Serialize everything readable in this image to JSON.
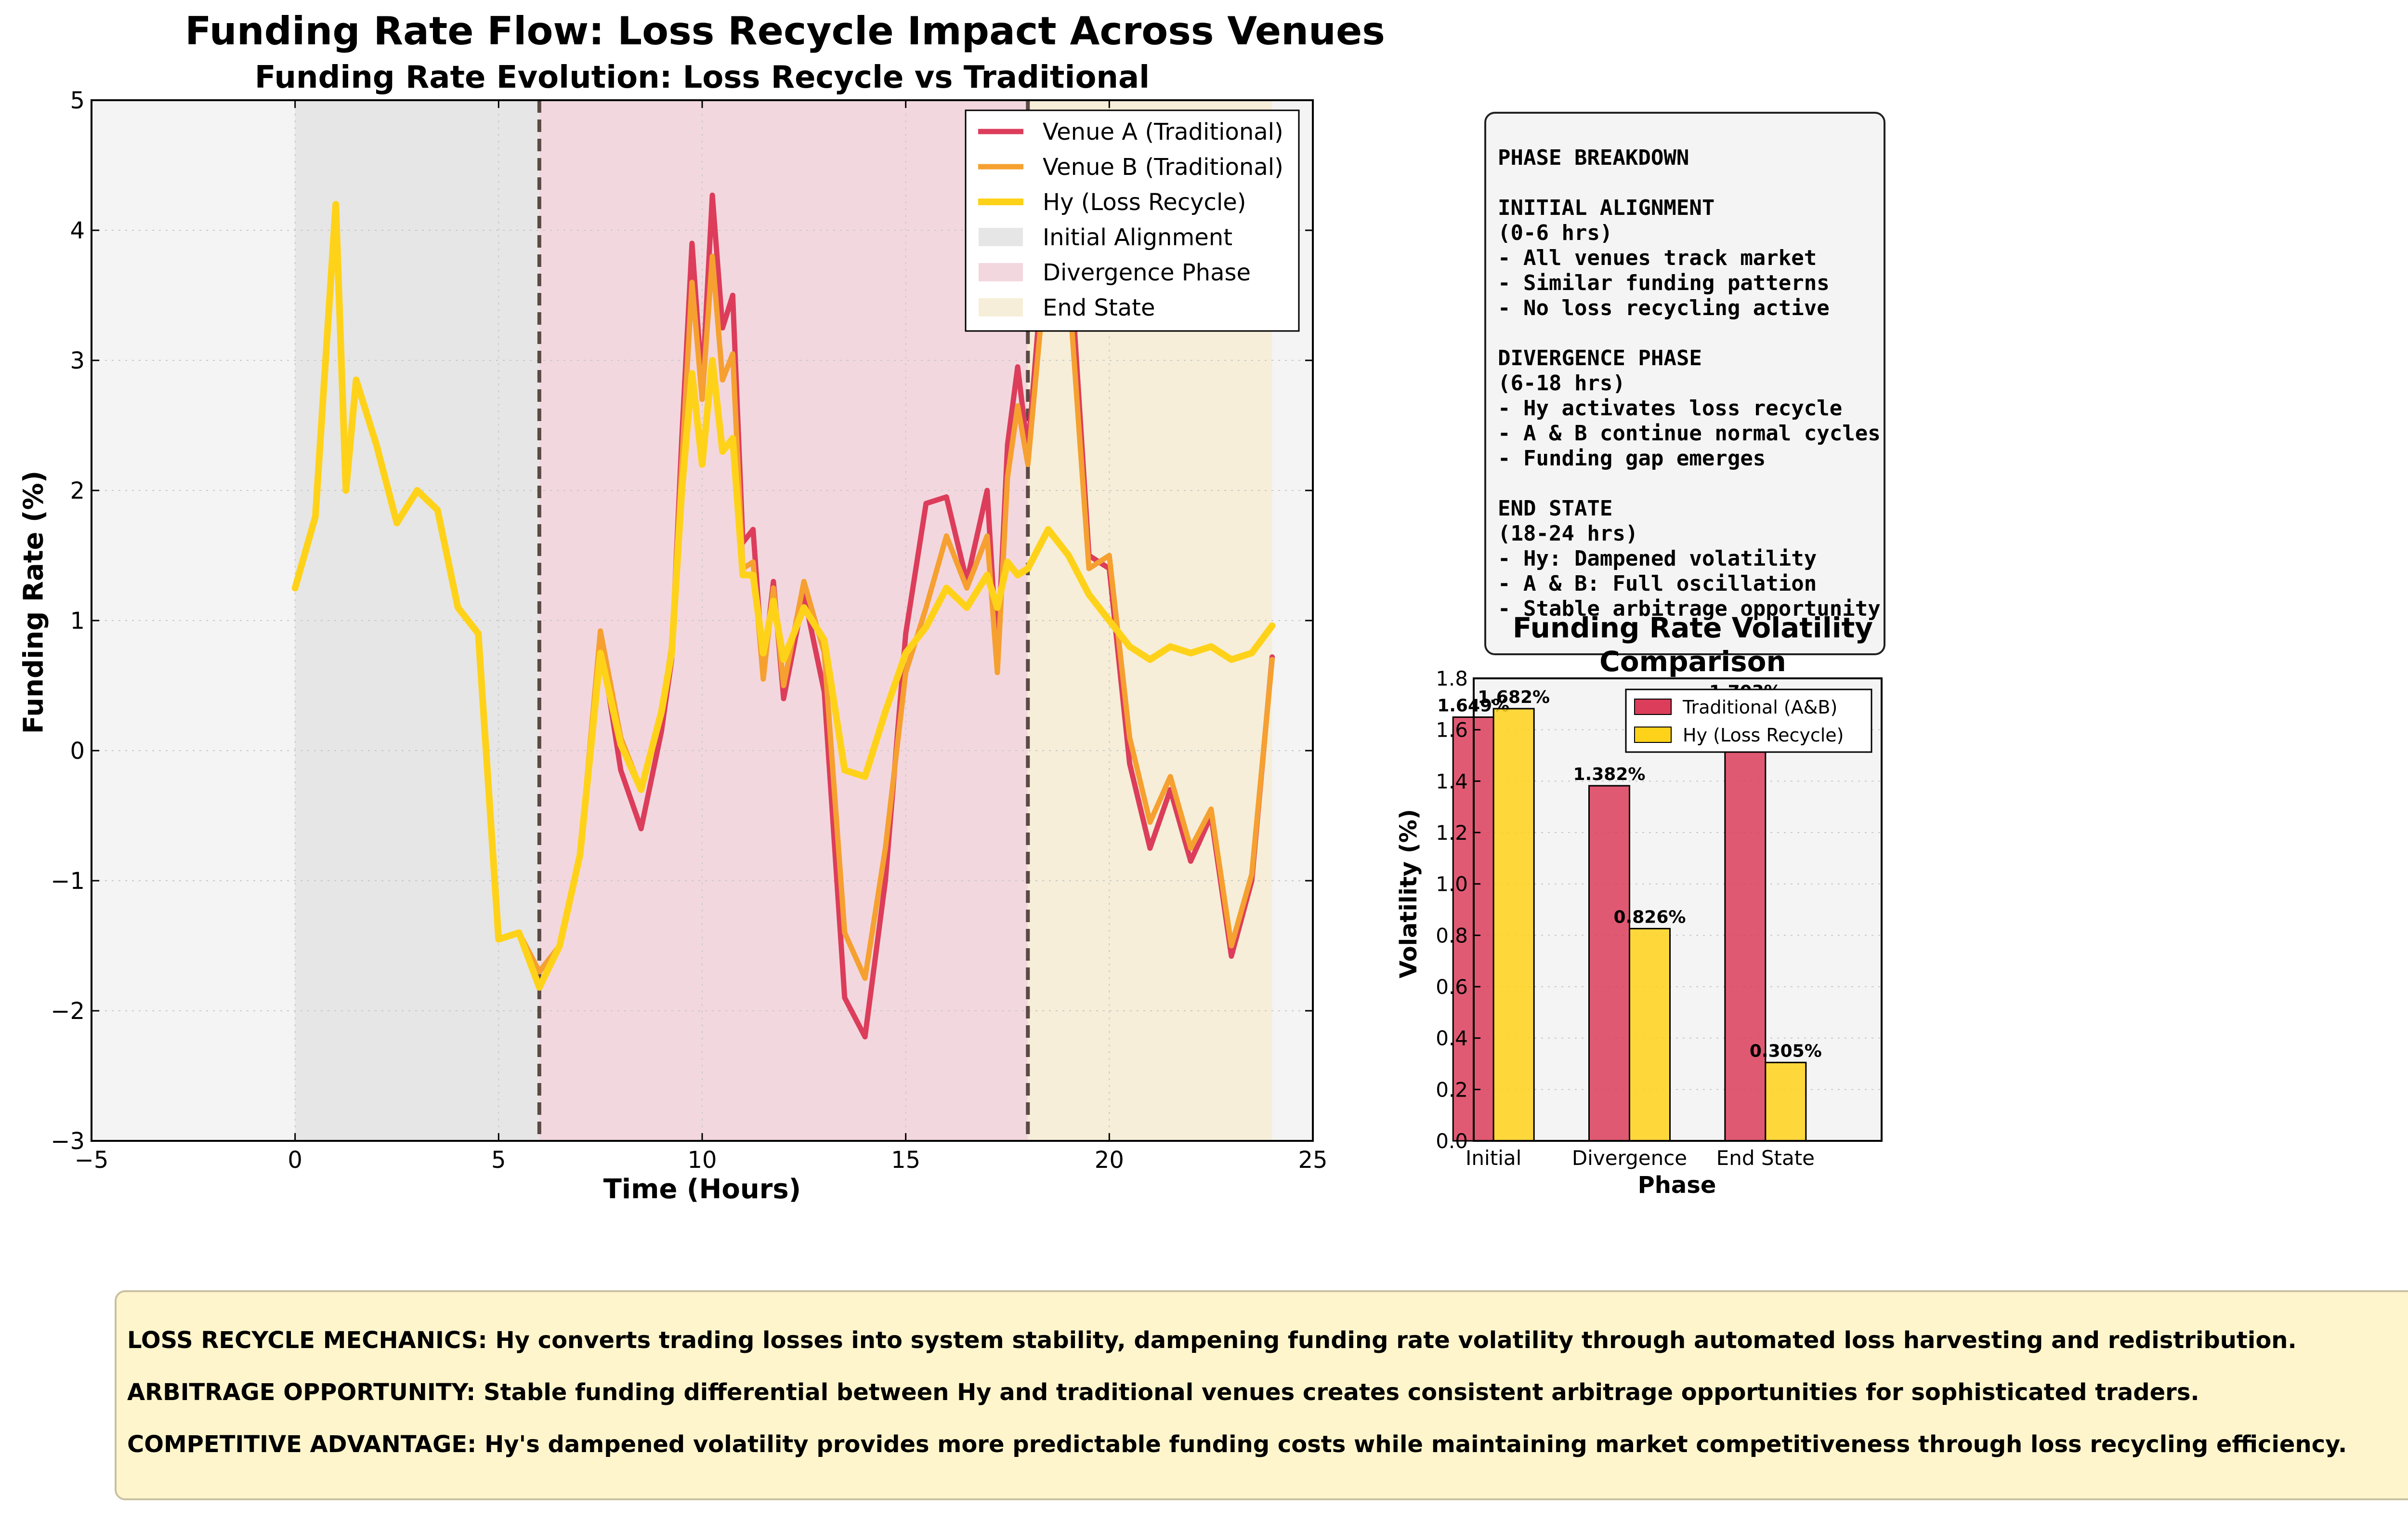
{
  "suptitle": "Funding Rate Flow: Loss Recycle Impact Across Venues",
  "colors": {
    "venue_a": "#dc3d5a",
    "venue_b": "#f5a030",
    "hy": "#ffd21a",
    "initial_shade": "#e6e6e6",
    "divergence_shade": "#f3d7de",
    "end_shade": "#f6eed8",
    "axes_bg": "#f4f4f4",
    "boundary": "#5a4a44"
  },
  "chart_data": [
    {
      "type": "line",
      "title": "Funding Rate Evolution: Loss Recycle vs Traditional",
      "xlabel": "Time (Hours)",
      "ylabel": "Funding Rate (%)",
      "xlim": [
        -5,
        25
      ],
      "ylim": [
        -3,
        5
      ],
      "xticks": [
        -5,
        0,
        5,
        10,
        15,
        20,
        25
      ],
      "xtick_labels": [
        "−5",
        "0",
        "5",
        "10",
        "15",
        "20",
        "25"
      ],
      "yticks": [
        -3,
        -2,
        -1,
        0,
        1,
        2,
        3,
        4,
        5
      ],
      "ytick_labels": [
        "−3",
        "−2",
        "−1",
        "0",
        "1",
        "2",
        "3",
        "4",
        "5"
      ],
      "grid": true,
      "legend_position": "top-right",
      "phases": [
        {
          "name": "Initial Alignment",
          "start": 0,
          "end": 6
        },
        {
          "name": "Divergence Phase",
          "start": 6,
          "end": 18
        },
        {
          "name": "End State",
          "start": 18,
          "end": 24
        }
      ],
      "boundaries": [
        6,
        18
      ],
      "series": [
        {
          "name": "Venue A (Traditional)",
          "x": [
            0,
            0.5,
            1,
            1.25,
            1.5,
            2,
            2.5,
            3,
            3.5,
            4,
            4.5,
            5,
            5.5,
            6,
            6.5,
            7,
            7.5,
            8,
            8.5,
            9,
            9.25,
            9.5,
            9.75,
            10,
            10.25,
            10.5,
            10.75,
            11,
            11.25,
            11.5,
            11.75,
            12,
            12.5,
            13,
            13.5,
            14,
            14.5,
            15,
            15.5,
            16,
            16.5,
            17,
            17.25,
            17.5,
            17.75,
            18,
            18.5,
            19,
            19.5,
            20,
            20.5,
            21,
            21.5,
            22,
            22.5,
            23,
            23.5,
            24
          ],
          "values": [
            1.25,
            1.8,
            4.2,
            2.0,
            2.85,
            2.35,
            1.75,
            2.0,
            1.85,
            1.1,
            0.9,
            -1.45,
            -1.4,
            -1.7,
            -1.5,
            -0.8,
            0.85,
            -0.15,
            -0.6,
            0.15,
            0.7,
            2.4,
            3.9,
            2.8,
            4.27,
            3.25,
            3.5,
            1.6,
            1.7,
            0.6,
            1.3,
            0.4,
            1.2,
            0.45,
            -1.9,
            -2.2,
            -1.0,
            0.9,
            1.9,
            1.95,
            1.3,
            2.0,
            0.7,
            2.35,
            2.95,
            2.3,
            4.2,
            3.95,
            1.5,
            1.4,
            -0.1,
            -0.75,
            -0.3,
            -0.85,
            -0.5,
            -1.58,
            -1.0,
            0.72
          ]
        },
        {
          "name": "Venue B (Traditional)",
          "x": [
            0,
            0.5,
            1,
            1.25,
            1.5,
            2,
            2.5,
            3,
            3.5,
            4,
            4.5,
            5,
            5.5,
            6,
            6.5,
            7,
            7.5,
            8,
            8.5,
            9,
            9.25,
            9.5,
            9.75,
            10,
            10.25,
            10.5,
            10.75,
            11,
            11.25,
            11.5,
            11.75,
            12,
            12.5,
            13,
            13.5,
            14,
            14.5,
            15,
            15.5,
            16,
            16.5,
            17,
            17.25,
            17.5,
            17.75,
            18,
            18.5,
            19,
            19.5,
            20,
            20.5,
            21,
            21.5,
            22,
            22.5,
            23,
            23.5,
            24
          ],
          "values": [
            1.25,
            1.8,
            4.2,
            2.0,
            2.85,
            2.35,
            1.75,
            2.0,
            1.85,
            1.1,
            0.9,
            -1.45,
            -1.4,
            -1.7,
            -1.5,
            -0.8,
            0.92,
            0.1,
            -0.3,
            0.3,
            0.8,
            2.2,
            3.6,
            2.7,
            3.8,
            2.85,
            3.05,
            1.4,
            1.45,
            0.55,
            1.25,
            0.5,
            1.3,
            0.75,
            -1.4,
            -1.75,
            -0.75,
            0.6,
            1.1,
            1.65,
            1.25,
            1.65,
            0.6,
            2.1,
            2.65,
            2.2,
            3.9,
            3.6,
            1.4,
            1.5,
            0.1,
            -0.55,
            -0.2,
            -0.75,
            -0.45,
            -1.5,
            -0.95,
            0.7
          ]
        },
        {
          "name": "Hy (Loss Recycle)",
          "x": [
            0,
            0.5,
            1,
            1.25,
            1.5,
            2,
            2.5,
            3,
            3.5,
            4,
            4.5,
            5,
            5.5,
            6,
            6.5,
            7,
            7.5,
            8,
            8.5,
            9,
            9.25,
            9.5,
            9.75,
            10,
            10.25,
            10.5,
            10.75,
            11,
            11.25,
            11.5,
            11.75,
            12,
            12.5,
            13,
            13.5,
            14,
            14.5,
            15,
            15.5,
            16,
            16.5,
            17,
            17.25,
            17.5,
            17.75,
            18,
            18.5,
            19,
            19.5,
            20,
            20.5,
            21,
            21.5,
            22,
            22.5,
            23,
            23.5,
            24
          ],
          "values": [
            1.25,
            1.8,
            4.2,
            2.0,
            2.85,
            2.35,
            1.75,
            2.0,
            1.85,
            1.1,
            0.9,
            -1.45,
            -1.4,
            -1.82,
            -1.5,
            -0.8,
            0.75,
            0.05,
            -0.3,
            0.3,
            0.75,
            2.0,
            2.9,
            2.2,
            3.0,
            2.3,
            2.4,
            1.35,
            1.35,
            0.75,
            1.15,
            0.7,
            1.1,
            0.85,
            -0.15,
            -0.2,
            0.3,
            0.75,
            0.95,
            1.25,
            1.1,
            1.35,
            1.1,
            1.45,
            1.35,
            1.4,
            1.7,
            1.5,
            1.2,
            1.0,
            0.8,
            0.7,
            0.8,
            0.75,
            0.8,
            0.7,
            0.75,
            0.96
          ]
        }
      ]
    },
    {
      "type": "bar",
      "title": "Funding Rate Volatility Comparison",
      "xlabel": "Phase",
      "ylabel": "Volatility (%)",
      "categories": [
        "Initial",
        "Divergence",
        "End State"
      ],
      "ylim": [
        0,
        1.8
      ],
      "yticks": [
        0.0,
        0.2,
        0.4,
        0.6,
        0.8,
        1.0,
        1.2,
        1.4,
        1.6,
        1.8
      ],
      "ytick_labels": [
        "0.0",
        "0.2",
        "0.4",
        "0.6",
        "0.8",
        "1.0",
        "1.2",
        "1.4",
        "1.6",
        "1.8"
      ],
      "grid": true,
      "legend_position": "top-right",
      "series": [
        {
          "name": "Traditional (A&B)",
          "values": [
            1.649,
            1.382,
            1.703
          ],
          "labels": [
            "1.649%",
            "1.382%",
            "1.703%"
          ]
        },
        {
          "name": "Hy (Loss Recycle)",
          "values": [
            1.682,
            0.826,
            0.305
          ],
          "labels": [
            "1.682%",
            "0.826%",
            "0.305%"
          ]
        }
      ]
    }
  ],
  "phase_box": {
    "heading": "PHASE BREAKDOWN",
    "sections": [
      {
        "title": "INITIAL ALIGNMENT",
        "range": "(0-6 hrs)",
        "items": [
          "- All venues track market",
          "- Similar funding patterns",
          "- No loss recycling active"
        ]
      },
      {
        "title": "DIVERGENCE PHASE",
        "range": "(6-18 hrs)",
        "items": [
          "- Hy activates loss recycle",
          "- A & B continue normal cycles",
          "- Funding gap emerges"
        ]
      },
      {
        "title": "END STATE",
        "range": "(18-24 hrs)",
        "items": [
          "- Hy: Dampened volatility",
          "- A & B: Full oscillation",
          "- Stable arbitrage opportunity"
        ]
      }
    ]
  },
  "bottom_notes": [
    "LOSS RECYCLE MECHANICS: Hy converts trading losses into system stability, dampening funding rate volatility through automated loss harvesting and redistribution.",
    "ARBITRAGE OPPORTUNITY: Stable funding differential between Hy and traditional venues creates consistent arbitrage opportunities for sophisticated traders.",
    "COMPETITIVE ADVANTAGE: Hy's dampened volatility provides more predictable funding costs while maintaining market competitiveness through loss recycling efficiency."
  ]
}
